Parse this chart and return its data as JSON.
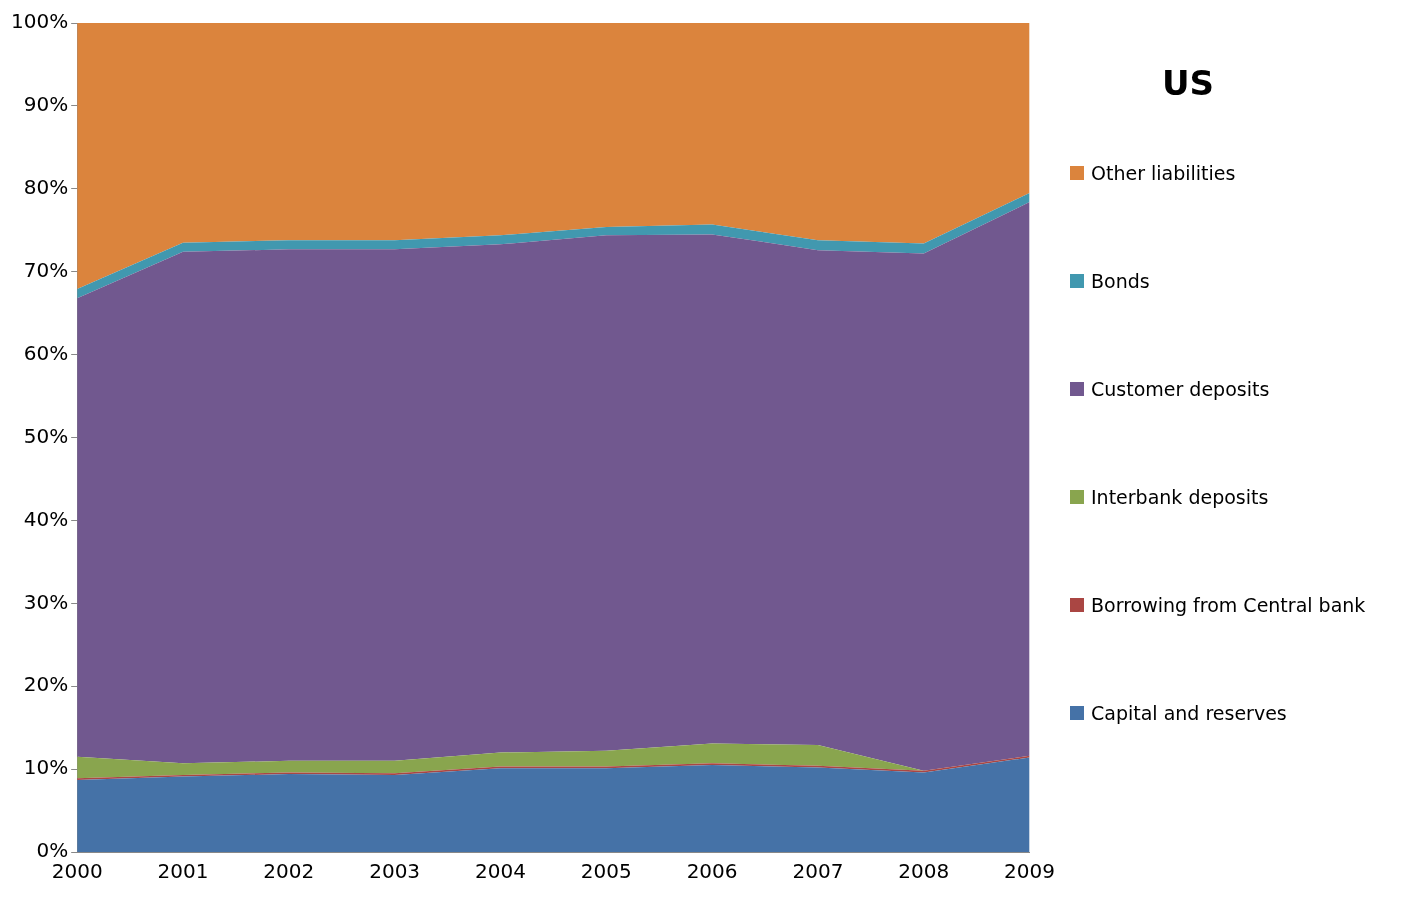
{
  "chart_data": {
    "type": "area",
    "title": "US",
    "stacked": true,
    "legend": "right",
    "grid": false,
    "marker": "none",
    "categories": [
      "2000",
      "2001",
      "2002",
      "2003",
      "2004",
      "2005",
      "2006",
      "2007",
      "2008",
      "2009"
    ],
    "ylim": [
      0,
      100
    ],
    "yticks": [
      {
        "value": 0,
        "label": "0%"
      },
      {
        "value": 10,
        "label": "10%"
      },
      {
        "value": 20,
        "label": "20%"
      },
      {
        "value": 30,
        "label": "30%"
      },
      {
        "value": 40,
        "label": "40%"
      },
      {
        "value": 50,
        "label": "50%"
      },
      {
        "value": 60,
        "label": "60%"
      },
      {
        "value": 70,
        "label": "70%"
      },
      {
        "value": 80,
        "label": "80%"
      },
      {
        "value": 90,
        "label": "90%"
      },
      {
        "value": 100,
        "label": "100%"
      }
    ],
    "series": [
      {
        "name": "Capital and reserves",
        "color": "#4572a7",
        "values": [
          8.7,
          9.1,
          9.4,
          9.3,
          10.1,
          10.1,
          10.5,
          10.2,
          9.6,
          11.4
        ]
      },
      {
        "name": "Borrowing from Central bank",
        "color": "#aa4643",
        "values": [
          0.2,
          0.2,
          0.2,
          0.2,
          0.2,
          0.2,
          0.2,
          0.2,
          0.2,
          0.2
        ]
      },
      {
        "name": "Interbank deposits",
        "color": "#89a54e",
        "values": [
          2.6,
          1.4,
          1.4,
          1.5,
          1.7,
          1.9,
          2.4,
          2.5,
          0,
          0
        ]
      },
      {
        "name": "Customer deposits",
        "color": "#71588f",
        "values": [
          55.3,
          61.7,
          61.7,
          61.7,
          61.3,
          62.2,
          61.4,
          59.7,
          62.4,
          66.8
        ]
      },
      {
        "name": "Bonds",
        "color": "#4198af",
        "values": [
          1.1,
          1.1,
          1.1,
          1.1,
          1.1,
          1.0,
          1.2,
          1.2,
          1.2,
          1.1
        ]
      },
      {
        "name": "Other liabilities",
        "color": "#db843d",
        "values": [
          32.3,
          26.7,
          26.4,
          26.4,
          25.8,
          24.8,
          24.5,
          26.4,
          26.8,
          20.7
        ]
      }
    ]
  }
}
